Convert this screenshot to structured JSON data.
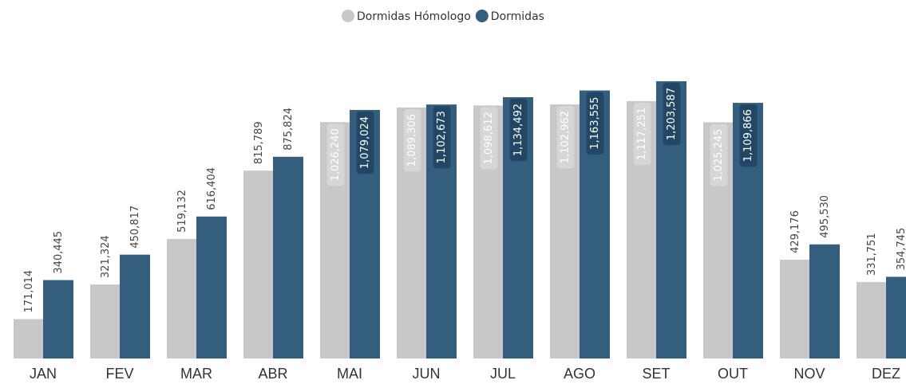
{
  "chart_data": {
    "type": "bar",
    "categories": [
      "JAN",
      "FEV",
      "MAR",
      "ABR",
      "MAI",
      "JUN",
      "JUL",
      "AGO",
      "SET",
      "OUT",
      "NOV",
      "DEZ"
    ],
    "series": [
      {
        "name": "Dormidas Hómologo",
        "color": "#c8c8c8",
        "values": [
          171014,
          321324,
          519132,
          815789,
          1026240,
          1089306,
          1098612,
          1102962,
          1117251,
          1025245,
          429176,
          331751
        ],
        "value_labels": [
          "171,014",
          "321,324",
          "519,132",
          "815,789",
          "1,026,240",
          "1,089,306",
          "1,098,612",
          "1,102,962",
          "1,117,251",
          "1,025,245",
          "429,176",
          "331,751"
        ]
      },
      {
        "name": "Dormidas",
        "color": "#335e7e",
        "values": [
          340445,
          450817,
          616404,
          875824,
          1079024,
          1102673,
          1134492,
          1163555,
          1203587,
          1109866,
          495530,
          354745
        ],
        "value_labels": [
          "340,445",
          "450,817",
          "616,404",
          "875,824",
          "1,079,024",
          "1,102,673",
          "1,134,492",
          "1,163,555",
          "1,203,587",
          "1,109,866",
          "495,530",
          "354,745"
        ]
      }
    ]
  }
}
